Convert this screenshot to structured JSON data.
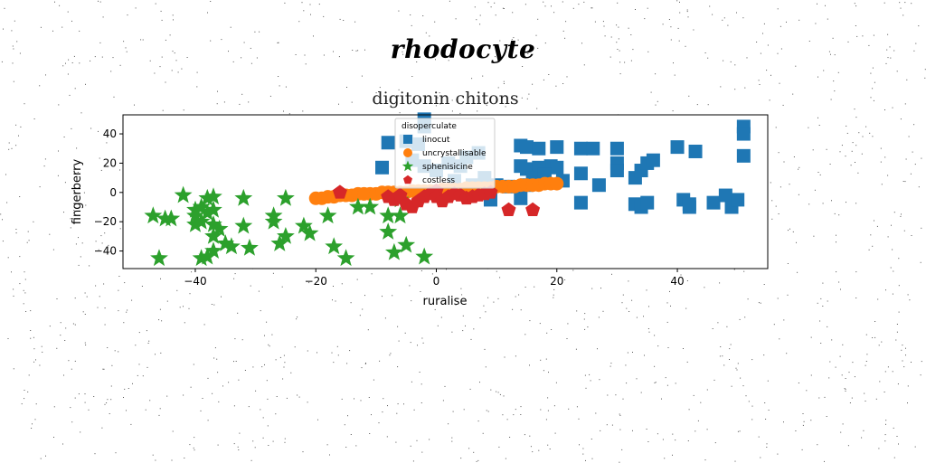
{
  "suptitle": "rhodocyte",
  "chart_data": {
    "type": "scatter",
    "title": "digitonin chitons",
    "xlabel": "ruralise",
    "ylabel": "fingerberry",
    "xlim": [
      -52,
      55
    ],
    "ylim": [
      -52,
      53
    ],
    "xticks": [
      -40,
      -20,
      0,
      20,
      40
    ],
    "yticks": [
      -40,
      -20,
      0,
      20,
      40
    ],
    "grid": false,
    "legend": {
      "title": "disoperculate",
      "placement": "upper-center"
    },
    "series": [
      {
        "name": "linocut",
        "marker": "square",
        "color": "#1f77b4",
        "points": [
          [
            -2,
            50
          ],
          [
            -2,
            45
          ],
          [
            -8,
            34
          ],
          [
            -5,
            35
          ],
          [
            -3,
            33
          ],
          [
            -9,
            17
          ],
          [
            -4,
            22
          ],
          [
            -2,
            18
          ],
          [
            0,
            15
          ],
          [
            2,
            20
          ],
          [
            4,
            18
          ],
          [
            5,
            24
          ],
          [
            7,
            27
          ],
          [
            3,
            8
          ],
          [
            6,
            5
          ],
          [
            8,
            10
          ],
          [
            10,
            5
          ],
          [
            9,
            -5
          ],
          [
            12,
            4
          ],
          [
            14,
            32
          ],
          [
            15,
            31
          ],
          [
            17,
            30
          ],
          [
            20,
            31
          ],
          [
            19,
            18
          ],
          [
            20,
            17
          ],
          [
            14,
            18
          ],
          [
            15,
            16
          ],
          [
            17,
            17
          ],
          [
            16,
            10
          ],
          [
            18,
            12
          ],
          [
            14,
            -4
          ],
          [
            15,
            5
          ],
          [
            21,
            8
          ],
          [
            24,
            30
          ],
          [
            24,
            13
          ],
          [
            24,
            -7
          ],
          [
            26,
            30
          ],
          [
            27,
            5
          ],
          [
            30,
            30
          ],
          [
            30,
            20
          ],
          [
            30,
            15
          ],
          [
            33,
            10
          ],
          [
            34,
            15
          ],
          [
            35,
            20
          ],
          [
            36,
            22
          ],
          [
            33,
            -8
          ],
          [
            34,
            -10
          ],
          [
            35,
            -7
          ],
          [
            40,
            31
          ],
          [
            43,
            28
          ],
          [
            41,
            -5
          ],
          [
            42,
            -8
          ],
          [
            42,
            -10
          ],
          [
            46,
            -7
          ],
          [
            48,
            -2
          ],
          [
            49,
            -10
          ],
          [
            50,
            -5
          ],
          [
            51,
            45
          ],
          [
            51,
            40
          ],
          [
            51,
            25
          ]
        ]
      },
      {
        "name": "uncrystallisable",
        "marker": "circle",
        "color": "#ff7f0e",
        "points": [
          [
            -20,
            -4
          ],
          [
            -19,
            -4
          ],
          [
            -18,
            -3
          ],
          [
            -17,
            -3
          ],
          [
            -16,
            -2
          ],
          [
            -15,
            -2
          ],
          [
            -14,
            -2
          ],
          [
            -13,
            -1
          ],
          [
            -12,
            -1
          ],
          [
            -11,
            -1
          ],
          [
            -10,
            -1
          ],
          [
            -9,
            0
          ],
          [
            -8,
            0
          ],
          [
            -7,
            0
          ],
          [
            -6,
            0
          ],
          [
            -5,
            0
          ],
          [
            -4,
            1
          ],
          [
            -3,
            1
          ],
          [
            -2,
            1
          ],
          [
            -1,
            1
          ],
          [
            0,
            1
          ],
          [
            1,
            2
          ],
          [
            2,
            2
          ],
          [
            3,
            2
          ],
          [
            4,
            2
          ],
          [
            5,
            3
          ],
          [
            6,
            3
          ],
          [
            7,
            3
          ],
          [
            8,
            3
          ],
          [
            9,
            3
          ],
          [
            10,
            4
          ],
          [
            11,
            4
          ],
          [
            12,
            4
          ],
          [
            13,
            4
          ],
          [
            14,
            5
          ],
          [
            15,
            5
          ],
          [
            16,
            5
          ],
          [
            17,
            5
          ],
          [
            18,
            6
          ],
          [
            19,
            6
          ],
          [
            20,
            6
          ]
        ]
      },
      {
        "name": "sphenisicine",
        "marker": "star",
        "color": "#2ca02c",
        "points": [
          [
            -47,
            -16
          ],
          [
            -46,
            -45
          ],
          [
            -45,
            -18
          ],
          [
            -44,
            -18
          ],
          [
            -42,
            -2
          ],
          [
            -40,
            -12
          ],
          [
            -40,
            -16
          ],
          [
            -40,
            -22
          ],
          [
            -39,
            -20
          ],
          [
            -39,
            -10
          ],
          [
            -39,
            -45
          ],
          [
            -38,
            -4
          ],
          [
            -38,
            -14
          ],
          [
            -38,
            -44
          ],
          [
            -37,
            -3
          ],
          [
            -37,
            -12
          ],
          [
            -37,
            -22
          ],
          [
            -37,
            -30
          ],
          [
            -37,
            -40
          ],
          [
            -36,
            -25
          ],
          [
            -35,
            -35
          ],
          [
            -34,
            -37
          ],
          [
            -32,
            -4
          ],
          [
            -32,
            -23
          ],
          [
            -31,
            -38
          ],
          [
            -27,
            -16
          ],
          [
            -27,
            -20
          ],
          [
            -26,
            -35
          ],
          [
            -25,
            -4
          ],
          [
            -25,
            -30
          ],
          [
            -22,
            -23
          ],
          [
            -21,
            -28
          ],
          [
            -18,
            -16
          ],
          [
            -17,
            -37
          ],
          [
            -15,
            -45
          ],
          [
            -13,
            -10
          ],
          [
            -11,
            -10
          ],
          [
            -8,
            -16
          ],
          [
            -8,
            -27
          ],
          [
            -7,
            -41
          ],
          [
            -6,
            -5
          ],
          [
            -6,
            -16
          ],
          [
            -5,
            -36
          ],
          [
            -2,
            -44
          ]
        ]
      },
      {
        "name": "costless",
        "marker": "pentagon",
        "color": "#d62728",
        "points": [
          [
            -16,
            0
          ],
          [
            -8,
            -3
          ],
          [
            -7,
            -5
          ],
          [
            -6,
            -2
          ],
          [
            -5,
            -8
          ],
          [
            -4,
            -10
          ],
          [
            -3,
            -6
          ],
          [
            -2,
            -3
          ],
          [
            -1,
            -1
          ],
          [
            0,
            1
          ],
          [
            0,
            -3
          ],
          [
            1,
            -6
          ],
          [
            2,
            -3
          ],
          [
            3,
            -1
          ],
          [
            4,
            -2
          ],
          [
            5,
            -4
          ],
          [
            6,
            -3
          ],
          [
            7,
            -2
          ],
          [
            8,
            -1
          ],
          [
            9,
            0
          ],
          [
            12,
            -12
          ],
          [
            16,
            -12
          ]
        ]
      }
    ]
  }
}
